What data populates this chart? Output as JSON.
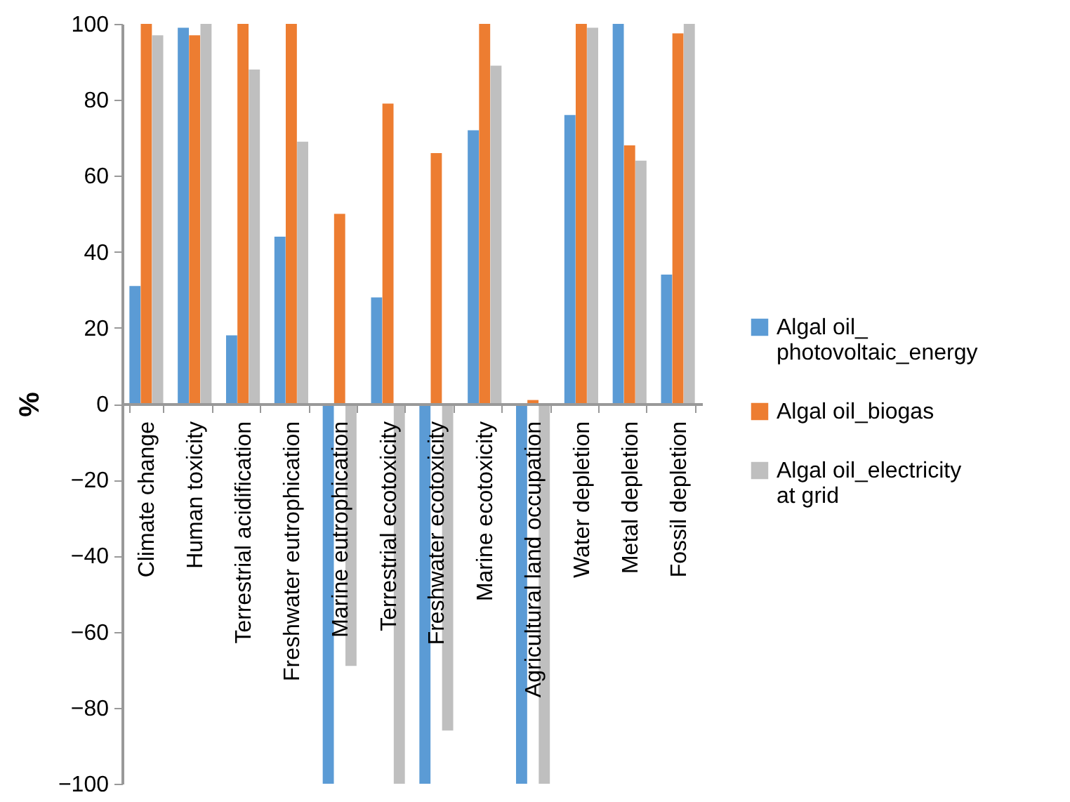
{
  "chart_data": {
    "type": "bar",
    "ylabel": "%",
    "categories": [
      "Climate change",
      "Human toxicity",
      "Terrestrial acidification",
      "Freshwater eutrophication",
      "Marine eutrophication",
      "Terrestrial ecotoxicity",
      "Freshwater ecotoxicity",
      "Marine ecotoxicity",
      "Agricultural land occupation",
      "Water depletion",
      "Metal depletion",
      "Fossil depletion"
    ],
    "series": [
      {
        "name": "Algal oil_photovoltaic_energy",
        "color": "#5b9bd5",
        "values": [
          31,
          99,
          18,
          44,
          -100,
          28,
          -100,
          72,
          -100,
          76,
          100,
          34
        ]
      },
      {
        "name": "Algal oil_biogas",
        "color": "#ed7d31",
        "values": [
          100,
          97,
          100,
          100,
          50,
          79,
          66,
          100,
          1,
          100,
          68,
          97.5
        ]
      },
      {
        "name": "Algal oil_electricity at grid",
        "color": "#bfbfbf",
        "values": [
          97,
          100,
          88,
          69,
          -69,
          -100,
          -86,
          89,
          -100,
          99,
          64,
          100
        ]
      }
    ],
    "ylim": [
      -100,
      100
    ],
    "yticks": [
      -100,
      -80,
      -60,
      -40,
      -20,
      0,
      20,
      40,
      60,
      80,
      100
    ],
    "grid": false,
    "legend": "right"
  }
}
